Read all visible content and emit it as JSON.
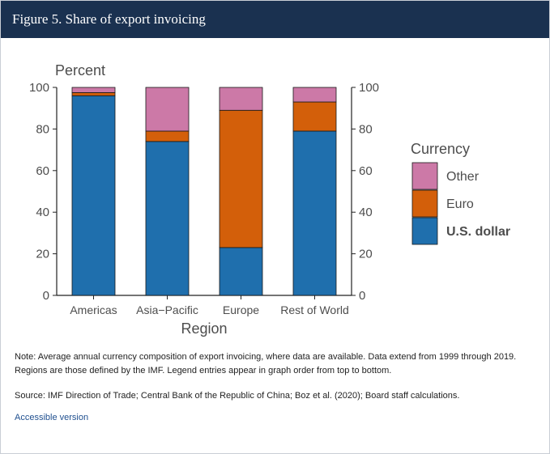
{
  "header": {
    "title": "Figure 5. Share of export invoicing"
  },
  "chart_data": {
    "type": "bar",
    "stacked": true,
    "categories": [
      "Americas",
      "Asia-Pacific",
      "Europe",
      "Rest of World"
    ],
    "series": [
      {
        "name": "U.S. dollar",
        "color": "#1f6fad",
        "values": [
          96,
          74,
          23,
          79
        ]
      },
      {
        "name": "Euro",
        "color": "#d35f0a",
        "values": [
          1.5,
          5,
          66,
          14
        ]
      },
      {
        "name": "Other",
        "color": "#cc79a7",
        "values": [
          2.5,
          21,
          11,
          7
        ]
      }
    ],
    "ylabel": "Percent",
    "xlabel": "Region",
    "ylim": [
      0,
      100
    ],
    "yticks": [
      0,
      20,
      40,
      60,
      80,
      100
    ],
    "secondary_y_axis": true,
    "legend": {
      "title": "Currency",
      "placement": "right",
      "order": [
        "Other",
        "Euro",
        "U.S. dollar"
      ],
      "emphasized": "U.S. dollar"
    },
    "grid": false
  },
  "notes": {
    "note": "Note: Average annual currency composition of export invoicing, where data are available. Data extend from 1999 through 2019. Regions are those defined by the IMF. Legend entries appear in graph order from top to bottom.",
    "source": "Source: IMF Direction of Trade; Central Bank of the Republic of China; Boz et al. (2020); Board staff calculations."
  },
  "links": {
    "accessible": "Accessible version"
  }
}
